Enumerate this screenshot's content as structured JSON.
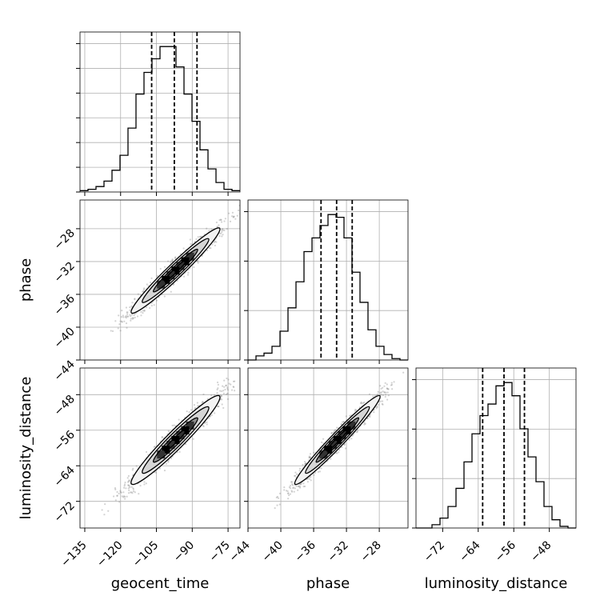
{
  "chart_data": {
    "type": "corner",
    "parameters": [
      "geocent_time",
      "phase",
      "luminosity_distance"
    ],
    "axis_labels": {
      "geocent_time": "geocent_time",
      "phase": "phase",
      "luminosity_distance": "luminosity_distance"
    },
    "ranges": {
      "geocent_time": [
        -137,
        -70
      ],
      "phase": [
        -44,
        -24.5
      ],
      "luminosity_distance": [
        -78,
        -42
      ]
    },
    "ticks": {
      "geocent_time": [
        -135,
        -120,
        -105,
        -90,
        -75
      ],
      "phase": [
        -44,
        -40,
        -36,
        -32,
        -28
      ],
      "luminosity_distance": [
        -72,
        -64,
        -56,
        -48
      ]
    },
    "tick_labels": {
      "geocent_time": [
        "−135",
        "−120",
        "−105",
        "−90",
        "−75"
      ],
      "phase": [
        "−44",
        "−40",
        "−36",
        "−32",
        "−28"
      ],
      "luminosity_distance": [
        "−72",
        "−64",
        "−56",
        "−48"
      ]
    },
    "left_tick_labels": {
      "phase": [
        "−44",
        "−40",
        "−36",
        "−32",
        "−28"
      ],
      "luminosity_distance": [
        "−72",
        "−64",
        "−56",
        "−48"
      ]
    },
    "diagonal_tick_counts": {
      "geocent_time": 6,
      "phase": 3,
      "luminosity_distance": 3
    },
    "quantiles": {
      "geocent_time": [
        -107,
        -97.5,
        -88
      ],
      "phase": [
        -35.1,
        -33.2,
        -31.3
      ],
      "luminosity_distance": [
        -63.0,
        -58.2,
        -53.6
      ]
    },
    "histograms": {
      "geocent_time": {
        "edges": [
          -137,
          -133.65,
          -130.3,
          -126.95,
          -123.6,
          -120.25,
          -116.9,
          -113.55,
          -110.2,
          -106.85,
          -103.5,
          -100.15,
          -96.8,
          -93.45,
          -90.1,
          -86.75,
          -83.4,
          -80.05,
          -76.7,
          -73.35,
          -70
        ],
        "counts": [
          1,
          2,
          4,
          8,
          16,
          27,
          47,
          72,
          88,
          98,
          107,
          107,
          92,
          72,
          52,
          31,
          17,
          7,
          2,
          1
        ]
      },
      "phase": {
        "edges": [
          -44,
          -43.025,
          -42.05,
          -41.075,
          -40.1,
          -39.125,
          -38.15,
          -37.175,
          -36.2,
          -35.225,
          -34.25,
          -33.275,
          -32.3,
          -31.325,
          -30.35,
          -29.375,
          -28.4,
          -27.425,
          -26.45,
          -25.475,
          -24.5
        ],
        "counts": [
          0,
          3,
          5,
          10,
          21,
          38,
          57,
          79,
          89,
          98,
          106,
          104,
          89,
          64,
          42,
          22,
          10,
          4,
          1,
          0
        ]
      },
      "luminosity_distance": {
        "edges": [
          -78,
          -76.2,
          -74.4,
          -72.6,
          -70.8,
          -69,
          -67.2,
          -65.4,
          -63.6,
          -61.8,
          -60,
          -58.2,
          -56.4,
          -54.6,
          -52.8,
          -51,
          -49.2,
          -47.4,
          -45.6,
          -43.8,
          -42
        ],
        "counts": [
          0,
          0,
          2,
          6,
          13,
          24,
          40,
          57,
          68,
          75,
          86,
          88,
          80,
          60,
          43,
          28,
          13,
          5,
          1,
          0
        ]
      }
    },
    "correlations": {
      "phase|geocent_time": {
        "mean": [
          -97,
          -33.1
        ],
        "sd": [
          9.3,
          2.6
        ],
        "rho": 0.97
      },
      "luminosity_distance|geocent_time": {
        "mean": [
          -97,
          -58.2
        ],
        "sd": [
          9.3,
          5.0
        ],
        "rho": 0.96
      },
      "luminosity_distance|phase": {
        "mean": [
          -33.1,
          -58.2
        ],
        "sd": [
          2.6,
          5.0
        ],
        "rho": 0.975
      }
    },
    "scatter_points": 1500,
    "contour_levels_sigma": [
      0.5,
      1.0,
      1.5,
      2.0
    ],
    "grid": true,
    "line_color": "#000000",
    "point_color": "#808080",
    "grid_color": "#b0b0b0"
  }
}
